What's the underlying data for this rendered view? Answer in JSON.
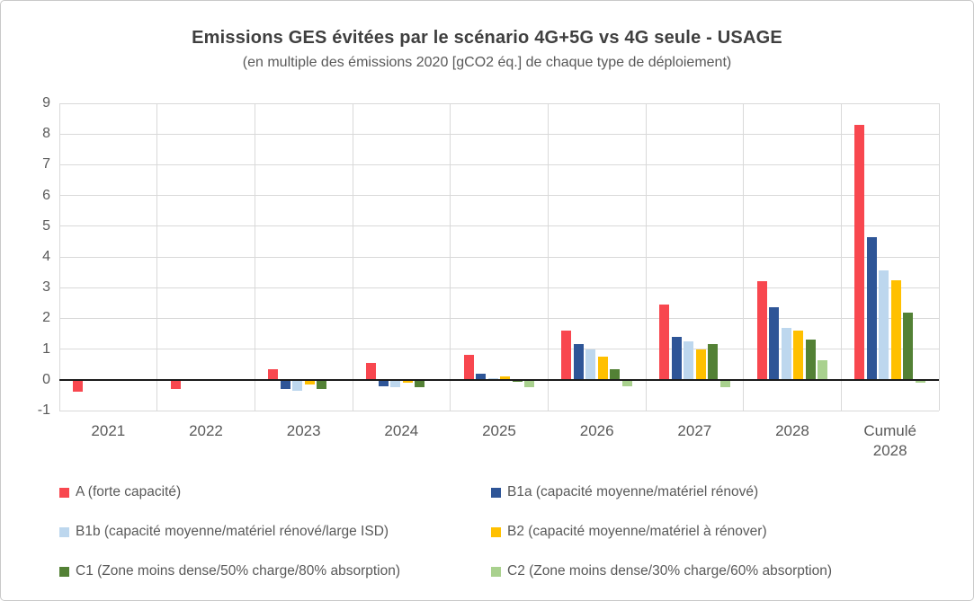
{
  "chart_data": {
    "type": "bar",
    "title": "Emissions GES évitées par le scénario 4G+5G vs 4G seule - USAGE",
    "subtitle": "(en multiple des émissions 2020 [gCO2 éq.] de chaque type de déploiement)",
    "categories": [
      "2021",
      "2022",
      "2023",
      "2024",
      "2025",
      "2026",
      "2027",
      "2028",
      "Cumulé 2028"
    ],
    "series": [
      {
        "name": "A (forte capacité)",
        "color": "#f8474f",
        "values": [
          -0.4,
          -0.3,
          0.35,
          0.55,
          0.8,
          1.6,
          2.45,
          3.2,
          8.3
        ]
      },
      {
        "name": "B1a (capacité moyenne/matériel rénové)",
        "color": "#2e5597",
        "values": [
          0,
          0,
          -0.3,
          -0.2,
          0.2,
          1.15,
          1.4,
          2.35,
          4.65
        ]
      },
      {
        "name": "B1b (capacité moyenne/matériel rénové/large ISD)",
        "color": "#bdd7ee",
        "values": [
          0,
          0,
          -0.35,
          -0.25,
          0.05,
          1.0,
          1.25,
          1.7,
          3.55
        ]
      },
      {
        "name": "B2 (capacité moyenne/matériel à rénover)",
        "color": "#ffc000",
        "values": [
          0,
          0,
          -0.15,
          -0.1,
          0.1,
          0.75,
          1.0,
          1.6,
          3.25
        ]
      },
      {
        "name": "C1 (Zone moins dense/50% charge/80% absorption)",
        "color": "#538135",
        "values": [
          0,
          0,
          -0.3,
          -0.25,
          -0.05,
          0.35,
          1.15,
          1.3,
          2.2
        ]
      },
      {
        "name": "C2 (Zone moins dense/30% charge/60% absorption)",
        "color": "#a9d18e",
        "values": [
          0,
          0,
          0,
          0,
          -0.25,
          -0.2,
          -0.25,
          0.65,
          -0.1
        ]
      }
    ],
    "ylim": [
      -1,
      9
    ],
    "y_ticks": [
      9,
      8,
      7,
      6,
      5,
      4,
      3,
      2,
      1,
      0,
      -1
    ],
    "grid": true,
    "legend_position": "bottom",
    "legend_columns": 2
  }
}
